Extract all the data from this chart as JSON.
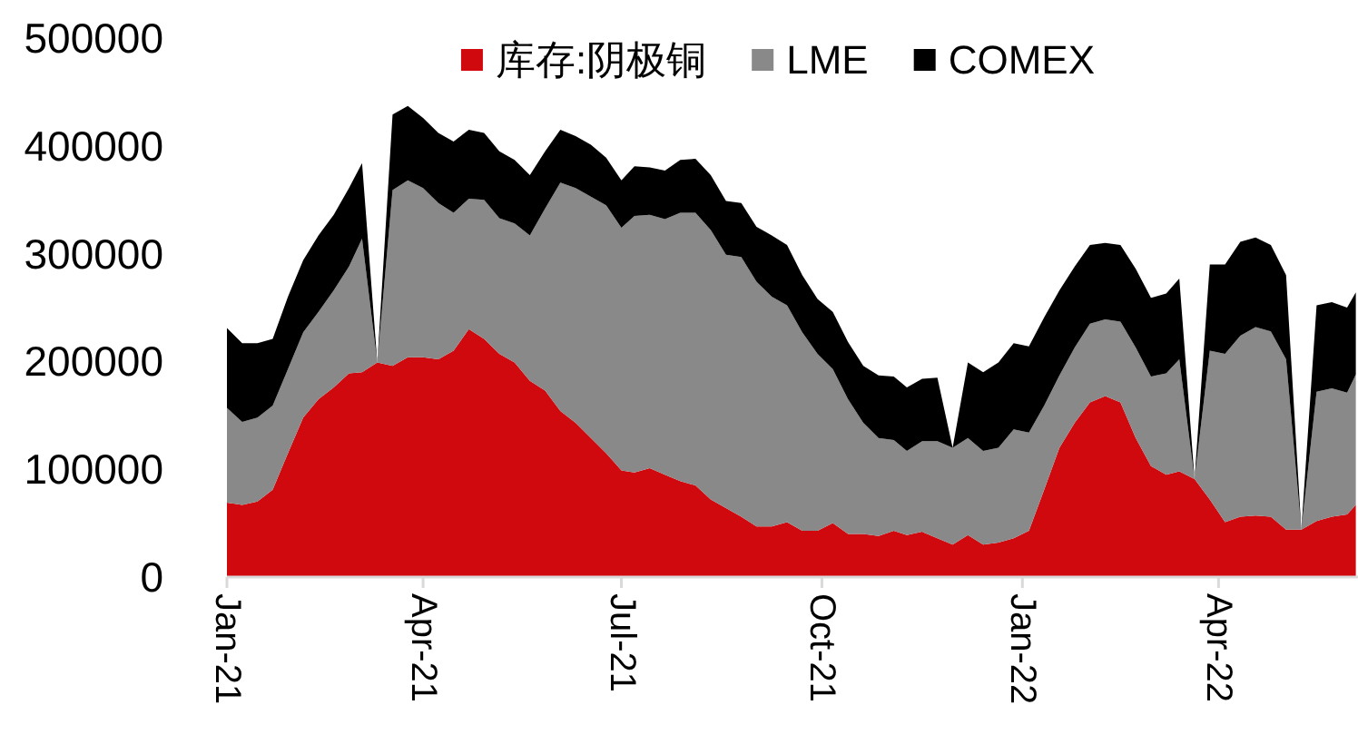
{
  "chart_data": {
    "type": "area",
    "stacked": true,
    "x": [
      "2021-01-01",
      "2021-01-08",
      "2021-01-15",
      "2021-01-22",
      "2021-01-29",
      "2021-02-05",
      "2021-02-12",
      "2021-02-19",
      "2021-02-26",
      "2021-03-04",
      "2021-03-11",
      "2021-03-18",
      "2021-03-25",
      "2021-04-01",
      "2021-04-08",
      "2021-04-15",
      "2021-04-22",
      "2021-04-29",
      "2021-05-06",
      "2021-05-13",
      "2021-05-20",
      "2021-05-27",
      "2021-06-03",
      "2021-06-10",
      "2021-06-17",
      "2021-06-24",
      "2021-07-01",
      "2021-07-07",
      "2021-07-14",
      "2021-07-21",
      "2021-07-28",
      "2021-08-04",
      "2021-08-11",
      "2021-08-18",
      "2021-08-25",
      "2021-09-01",
      "2021-09-08",
      "2021-09-15",
      "2021-09-22",
      "2021-09-29",
      "2021-10-06",
      "2021-10-13",
      "2021-10-20",
      "2021-10-27",
      "2021-11-03",
      "2021-11-09",
      "2021-11-16",
      "2021-11-23",
      "2021-11-30",
      "2021-12-07",
      "2021-12-14",
      "2021-12-21",
      "2021-12-28",
      "2022-01-04",
      "2022-01-11",
      "2022-01-18",
      "2022-01-25",
      "2022-02-01",
      "2022-02-08",
      "2022-02-15",
      "2022-02-22",
      "2022-03-01",
      "2022-03-08",
      "2022-03-14",
      "2022-03-21",
      "2022-03-28",
      "2022-04-04",
      "2022-04-11",
      "2022-04-18",
      "2022-04-25",
      "2022-05-02",
      "2022-05-09",
      "2022-05-16",
      "2022-05-23",
      "2022-05-30",
      "2022-06-03"
    ],
    "series": [
      {
        "name": "库存:阴极铜",
        "color": "#d0090f",
        "values": [
          69000,
          67000,
          70000,
          81000,
          115000,
          148000,
          165000,
          176000,
          189000,
          190000,
          199000,
          196000,
          204000,
          204000,
          202000,
          210000,
          230000,
          221000,
          207000,
          199000,
          182000,
          173000,
          154000,
          143000,
          129000,
          115000,
          99000,
          97000,
          101000,
          95000,
          89000,
          85000,
          72000,
          64000,
          56000,
          47000,
          47000,
          51000,
          43000,
          43000,
          50000,
          40000,
          40000,
          38000,
          43000,
          39000,
          42000,
          36000,
          30000,
          39000,
          30000,
          32000,
          36000,
          43000,
          81000,
          120000,
          143000,
          162000,
          168000,
          162000,
          129000,
          103000,
          95000,
          98000,
          91000,
          72000,
          51000,
          56000,
          57000,
          56000,
          44000,
          44000,
          52000,
          56000,
          58000,
          67000
        ]
      },
      {
        "name": "LME",
        "color": "#898989",
        "values": [
          88000,
          77000,
          78000,
          78000,
          78000,
          79000,
          81000,
          90000,
          99000,
          124000,
          0,
          163000,
          164000,
          157000,
          145000,
          128000,
          121000,
          129000,
          126000,
          129000,
          135000,
          169000,
          212000,
          218000,
          224000,
          230000,
          225000,
          238000,
          235000,
          237000,
          249000,
          253000,
          250000,
          235000,
          241000,
          227000,
          213000,
          201000,
          184000,
          164000,
          143000,
          125000,
          103000,
          91000,
          84000,
          78000,
          84000,
          90000,
          90000,
          90000,
          87000,
          88000,
          101000,
          91000,
          78000,
          67000,
          70000,
          73000,
          71000,
          75000,
          84000,
          83000,
          94000,
          104000,
          0,
          138000,
          156000,
          168000,
          175000,
          172000,
          158000,
          0,
          120000,
          119000,
          113000,
          121000
        ]
      },
      {
        "name": "COMEX",
        "color": "#000000",
        "values": [
          74000,
          73000,
          69000,
          62000,
          67000,
          67000,
          71000,
          70000,
          73000,
          70000,
          0,
          70000,
          69000,
          65000,
          65000,
          66000,
          64000,
          62000,
          62000,
          59000,
          56000,
          53000,
          49000,
          48000,
          48000,
          44000,
          44000,
          46000,
          44000,
          45000,
          49000,
          50000,
          51000,
          50000,
          50000,
          51000,
          57000,
          56000,
          53000,
          51000,
          53000,
          53000,
          53000,
          58000,
          59000,
          59000,
          58000,
          59000,
          0,
          70000,
          73000,
          79000,
          80000,
          80000,
          82000,
          79000,
          75000,
          73000,
          71000,
          71000,
          73000,
          73000,
          74000,
          75000,
          0,
          80000,
          83000,
          87000,
          83000,
          80000,
          78000,
          0,
          80000,
          80000,
          79000,
          76000
        ]
      }
    ],
    "xlim": [
      "2021-01-01",
      "2022-06-04"
    ],
    "xticks": [
      {
        "value": "2021-01-01",
        "label": "Jan-21"
      },
      {
        "value": "2021-04-01",
        "label": "Apr-21"
      },
      {
        "value": "2021-07-01",
        "label": "Jul-21"
      },
      {
        "value": "2021-10-01",
        "label": "Oct-21"
      },
      {
        "value": "2022-01-01",
        "label": "Jan-22"
      },
      {
        "value": "2022-04-01",
        "label": "Apr-22"
      }
    ],
    "ylim": [
      0,
      500000
    ],
    "yticks": [
      0,
      100000,
      200000,
      300000,
      400000,
      500000
    ],
    "legend": "top"
  }
}
